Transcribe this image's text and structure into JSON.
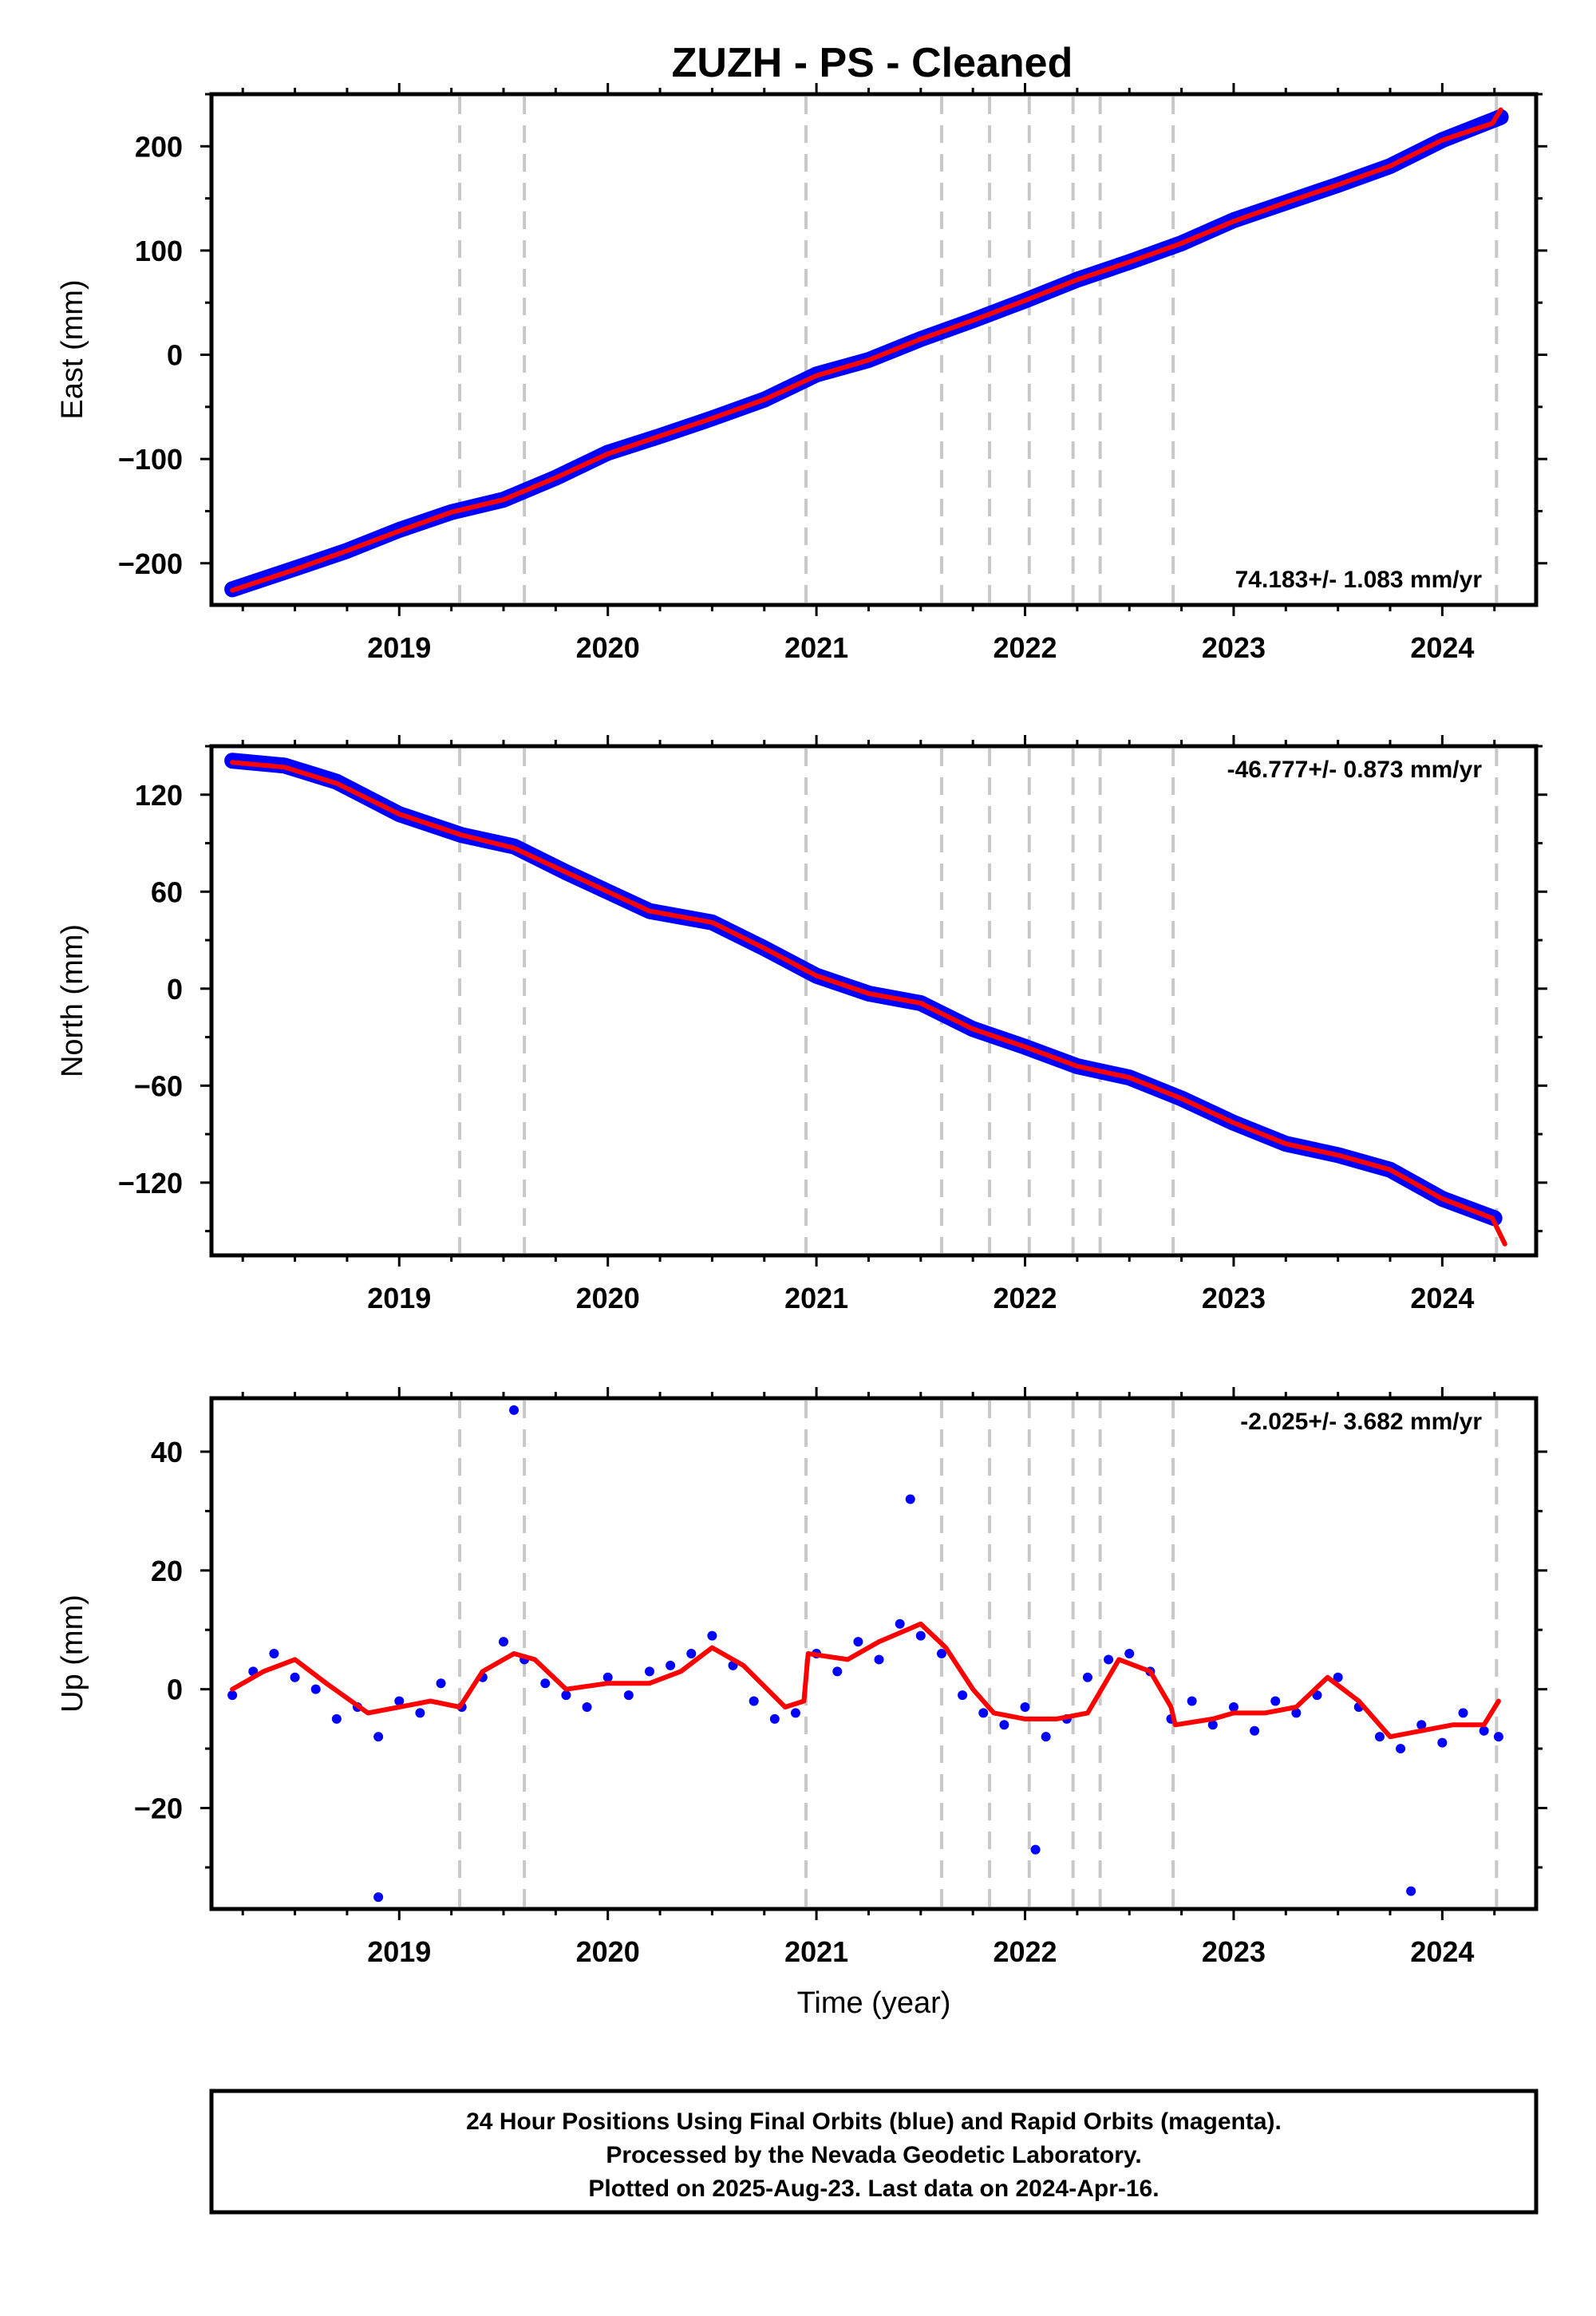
{
  "title": "ZUZH  - PS - Cleaned",
  "colors": {
    "points": "#0000ff",
    "fit": "#ff0000",
    "events": "#c8c8c8",
    "frame": "#000000"
  },
  "footer": {
    "line1": "24 Hour Positions Using Final Orbits (blue) and Rapid Orbits (magenta).",
    "line2": "Processed by the Nevada Geodetic Laboratory.",
    "line3": "Plotted on 2025-Aug-23. Last data on 2024-Apr-16."
  },
  "chart_data": [
    {
      "type": "scatter",
      "ylabel": "East (mm)",
      "xlabel": "",
      "xlim": [
        2018.1,
        2024.45
      ],
      "ylim": [
        -240,
        250
      ],
      "yticks": [
        -200,
        -100,
        0,
        100,
        200
      ],
      "xticks": [
        2019,
        2020,
        2021,
        2022,
        2023,
        2024
      ],
      "grid": false,
      "rate_label": "74.183+/- 1.083 mm/yr",
      "rate_position": "bottom-right",
      "event_lines": [
        2019.29,
        2019.6,
        2020.95,
        2021.6,
        2021.83,
        2022.02,
        2022.23,
        2022.36,
        2022.71,
        2024.26
      ],
      "series": [
        {
          "kind": "points",
          "x": [
            2018.2,
            2018.5,
            2018.75,
            2019.0,
            2019.25,
            2019.5,
            2019.75,
            2020.0,
            2020.25,
            2020.5,
            2020.75,
            2021.0,
            2021.25,
            2021.5,
            2021.75,
            2022.0,
            2022.25,
            2022.5,
            2022.75,
            2023.0,
            2023.25,
            2023.5,
            2023.75,
            2024.0,
            2024.28
          ],
          "y": [
            -225,
            -205,
            -188,
            -168,
            -151,
            -139,
            -118,
            -94,
            -78,
            -61,
            -43,
            -19,
            -5,
            15,
            33,
            52,
            72,
            89,
            107,
            129,
            146,
            163,
            181,
            206,
            228
          ]
        },
        {
          "kind": "fit",
          "x": [
            2018.2,
            2018.5,
            2018.75,
            2019.0,
            2019.25,
            2019.5,
            2019.75,
            2020.0,
            2020.25,
            2020.5,
            2020.75,
            2021.0,
            2021.25,
            2021.5,
            2021.75,
            2022.0,
            2022.25,
            2022.5,
            2022.75,
            2023.0,
            2023.25,
            2023.5,
            2023.75,
            2024.0,
            2024.24,
            2024.28
          ],
          "y": [
            -226,
            -206,
            -188,
            -169,
            -151,
            -139,
            -118,
            -95,
            -78,
            -61,
            -43,
            -20,
            -5,
            15,
            33,
            52,
            72,
            89,
            107,
            128,
            146,
            163,
            181,
            206,
            222,
            235
          ]
        }
      ]
    },
    {
      "type": "scatter",
      "ylabel": "North (mm)",
      "xlabel": "",
      "xlim": [
        2018.1,
        2024.45
      ],
      "ylim": [
        -165,
        150
      ],
      "yticks": [
        -120,
        -60,
        0,
        60,
        120
      ],
      "xticks": [
        2019,
        2020,
        2021,
        2022,
        2023,
        2024
      ],
      "grid": false,
      "rate_label": "-46.777+/- 0.873 mm/yr",
      "rate_position": "top-right",
      "event_lines": [
        2019.29,
        2019.6,
        2020.95,
        2021.6,
        2021.83,
        2022.02,
        2022.23,
        2022.36,
        2022.71,
        2024.26
      ],
      "series": [
        {
          "kind": "points",
          "x": [
            2018.2,
            2018.45,
            2018.7,
            2019.0,
            2019.3,
            2019.55,
            2019.8,
            2020.0,
            2020.2,
            2020.5,
            2020.75,
            2021.0,
            2021.25,
            2021.5,
            2021.75,
            2022.0,
            2022.25,
            2022.5,
            2022.75,
            2023.0,
            2023.25,
            2023.5,
            2023.75,
            2024.0,
            2024.25
          ],
          "y": [
            141,
            138,
            128,
            108,
            95,
            88,
            72,
            60,
            48,
            41,
            25,
            8,
            -3,
            -9,
            -25,
            -36,
            -48,
            -55,
            -68,
            -83,
            -96,
            -103,
            -112,
            -130,
            -142
          ]
        },
        {
          "kind": "fit",
          "x": [
            2018.2,
            2018.45,
            2018.7,
            2019.0,
            2019.3,
            2019.55,
            2019.8,
            2020.0,
            2020.2,
            2020.5,
            2020.75,
            2021.0,
            2021.25,
            2021.5,
            2021.75,
            2022.0,
            2022.25,
            2022.5,
            2022.75,
            2023.0,
            2023.25,
            2023.5,
            2023.75,
            2024.0,
            2024.24,
            2024.3
          ],
          "y": [
            140,
            137,
            127,
            108,
            95,
            87,
            72,
            60,
            48,
            41,
            25,
            8,
            -3,
            -9,
            -25,
            -36,
            -48,
            -55,
            -68,
            -83,
            -96,
            -103,
            -112,
            -130,
            -142,
            -158
          ]
        }
      ]
    },
    {
      "type": "scatter",
      "ylabel": "Up (mm)",
      "xlabel": "Time (year)",
      "xlim": [
        2018.1,
        2024.45
      ],
      "ylim": [
        -37,
        49
      ],
      "yticks": [
        -20,
        0,
        20,
        40
      ],
      "xticks": [
        2019,
        2020,
        2021,
        2022,
        2023,
        2024
      ],
      "grid": false,
      "rate_label": "-2.025+/- 3.682 mm/yr",
      "rate_position": "top-right",
      "event_lines": [
        2019.29,
        2019.6,
        2020.95,
        2021.6,
        2021.83,
        2022.02,
        2022.23,
        2022.36,
        2022.71,
        2024.26
      ],
      "series": [
        {
          "kind": "points",
          "x": [
            2018.2,
            2018.3,
            2018.4,
            2018.5,
            2018.6,
            2018.7,
            2018.8,
            2018.9,
            2019.0,
            2019.1,
            2019.2,
            2019.3,
            2019.4,
            2019.5,
            2019.6,
            2019.7,
            2019.8,
            2019.9,
            2020.0,
            2020.1,
            2020.2,
            2020.3,
            2020.4,
            2020.5,
            2020.6,
            2020.7,
            2020.8,
            2020.9,
            2021.0,
            2021.1,
            2021.2,
            2021.3,
            2021.4,
            2021.5,
            2021.6,
            2021.7,
            2021.8,
            2021.9,
            2022.0,
            2022.1,
            2022.2,
            2022.3,
            2022.4,
            2022.5,
            2022.6,
            2022.7,
            2022.8,
            2022.9,
            2023.0,
            2023.1,
            2023.2,
            2023.3,
            2023.4,
            2023.5,
            2023.6,
            2023.7,
            2023.8,
            2023.9,
            2024.0,
            2024.1,
            2024.2,
            2024.27,
            2019.55,
            2018.9,
            2021.45,
            2022.05,
            2023.85
          ],
          "y": [
            -1,
            3,
            6,
            2,
            0,
            -5,
            -3,
            -8,
            -2,
            -4,
            1,
            -3,
            2,
            8,
            5,
            1,
            -1,
            -3,
            2,
            -1,
            3,
            4,
            6,
            9,
            4,
            -2,
            -5,
            -4,
            6,
            3,
            8,
            5,
            11,
            9,
            6,
            -1,
            -4,
            -6,
            -3,
            -8,
            -5,
            2,
            5,
            6,
            3,
            -5,
            -2,
            -6,
            -3,
            -7,
            -2,
            -4,
            -1,
            2,
            -3,
            -8,
            -10,
            -6,
            -9,
            -4,
            -7,
            -8,
            47,
            -35,
            32,
            -27,
            -34
          ]
        },
        {
          "kind": "fit",
          "x": [
            2018.2,
            2018.35,
            2018.5,
            2018.65,
            2018.85,
            2019.0,
            2019.15,
            2019.29,
            2019.4,
            2019.55,
            2019.65,
            2019.8,
            2020.0,
            2020.2,
            2020.35,
            2020.5,
            2020.65,
            2020.85,
            2020.94,
            2020.96,
            2021.15,
            2021.3,
            2021.5,
            2021.62,
            2021.75,
            2021.85,
            2022.0,
            2022.15,
            2022.3,
            2022.45,
            2022.6,
            2022.7,
            2022.72,
            2022.9,
            2023.0,
            2023.15,
            2023.3,
            2023.45,
            2023.6,
            2023.75,
            2023.9,
            2024.05,
            2024.2,
            2024.27
          ],
          "y": [
            0,
            3,
            5,
            1,
            -4,
            -3,
            -2,
            -3,
            3,
            6,
            5,
            0,
            1,
            1,
            3,
            7,
            4,
            -3,
            -2,
            6,
            5,
            8,
            11,
            7,
            0,
            -4,
            -5,
            -5,
            -4,
            5,
            3,
            -3,
            -6,
            -5,
            -4,
            -4,
            -3,
            2,
            -2,
            -8,
            -7,
            -6,
            -6,
            -2
          ]
        }
      ]
    }
  ]
}
